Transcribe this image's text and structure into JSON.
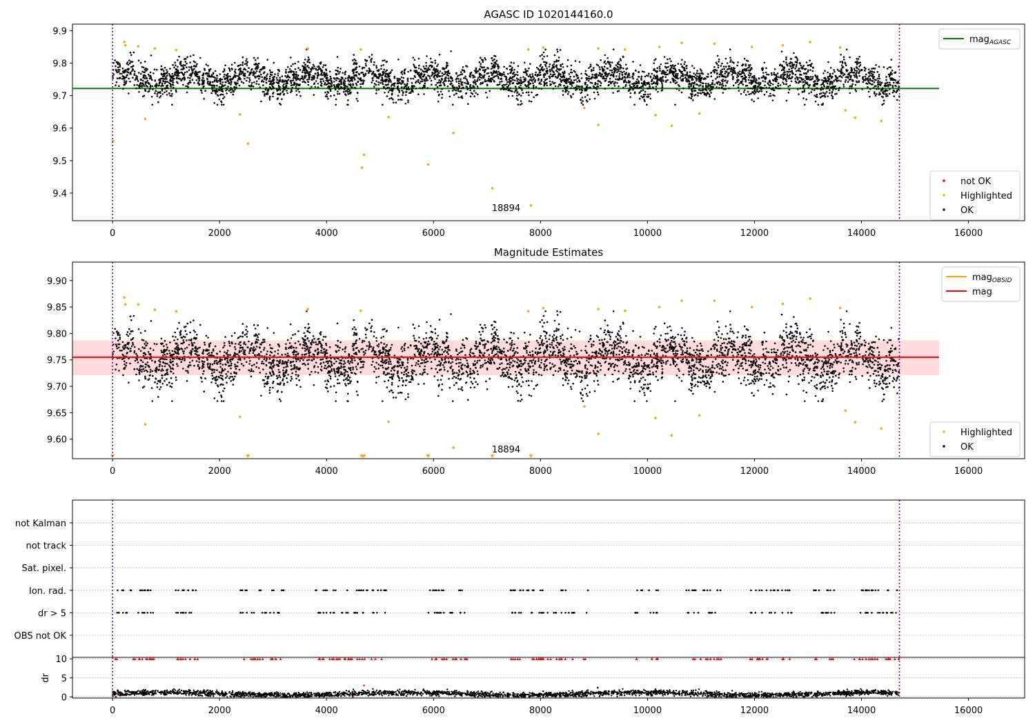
{
  "chart_data": [
    {
      "type": "scatter",
      "title": "AGASC ID 1020144160.0",
      "xlim": [
        -750,
        17050
      ],
      "ylim": [
        9.315,
        9.92
      ],
      "xticks": [
        0,
        2000,
        4000,
        6000,
        8000,
        10000,
        12000,
        14000,
        16000
      ],
      "xtick_labels": [
        "0",
        "2000",
        "4000",
        "6000",
        "8000",
        "10000",
        "12000",
        "14000",
        "16000"
      ],
      "yticks": [
        9.4,
        9.5,
        9.6,
        9.7,
        9.8,
        9.9
      ],
      "ytick_labels": [
        "9.4",
        "9.5",
        "9.6",
        "9.7",
        "9.8",
        "9.9"
      ],
      "hlines": [
        {
          "name": "mag_AGASC",
          "y": 9.722,
          "x": [
            -750,
            15450
          ],
          "color": "#008000"
        }
      ],
      "vlines": [
        {
          "x": 0,
          "color": "#800080",
          "style": "dotted"
        },
        {
          "x": 14710,
          "color": "#800080",
          "style": "dotted"
        }
      ],
      "annotations": [
        {
          "text": "18894",
          "x": 7090,
          "y": 9.345
        }
      ],
      "series": [
        {
          "name": "not OK",
          "color": "#ff0000",
          "values": []
        },
        {
          "name": "Highlighted",
          "color": "#ffa500",
          "points": [
            [
              10,
              9.56
            ],
            [
              220,
              9.865
            ],
            [
              240,
              9.855
            ],
            [
              480,
              9.852
            ],
            [
              610,
              9.628
            ],
            [
              790,
              9.845
            ],
            [
              1190,
              9.84
            ],
            [
              2380,
              9.642
            ],
            [
              2530,
              9.552
            ],
            [
              3650,
              9.845
            ],
            [
              4640,
              9.842
            ],
            [
              4660,
              9.478
            ],
            [
              4700,
              9.518
            ],
            [
              5160,
              9.634
            ],
            [
              5900,
              9.488
            ],
            [
              6370,
              9.585
            ],
            [
              7100,
              9.415
            ],
            [
              7770,
              9.842
            ],
            [
              7820,
              9.362
            ],
            [
              8050,
              9.848
            ],
            [
              8820,
              9.662
            ],
            [
              9080,
              9.61
            ],
            [
              9080,
              9.845
            ],
            [
              9580,
              9.842
            ],
            [
              10150,
              9.64
            ],
            [
              10220,
              9.85
            ],
            [
              10450,
              9.607
            ],
            [
              10640,
              9.862
            ],
            [
              10970,
              9.645
            ],
            [
              11250,
              9.86
            ],
            [
              11950,
              9.85
            ],
            [
              12530,
              9.855
            ],
            [
              13040,
              9.865
            ],
            [
              13600,
              9.848
            ],
            [
              13700,
              9.655
            ],
            [
              13880,
              9.632
            ],
            [
              14370,
              9.622
            ]
          ]
        },
        {
          "name": "OK",
          "color": "#000000",
          "generated": true,
          "count": 4200,
          "mean": 9.752,
          "sd": 0.032,
          "x_range": [
            0,
            14710
          ]
        }
      ],
      "legends": [
        {
          "placement": "upper right",
          "entries": [
            {
              "label": "mag",
              "sub": "AGASC",
              "color": "#008000",
              "kind": "line"
            }
          ]
        },
        {
          "placement": "lower right",
          "entries": [
            {
              "label": "not OK",
              "color": "#ff0000",
              "kind": "dot"
            },
            {
              "label": "Highlighted",
              "color": "#ffa500",
              "kind": "dot"
            },
            {
              "label": "OK",
              "color": "#000000",
              "kind": "dot"
            }
          ]
        }
      ]
    },
    {
      "type": "scatter",
      "title": "Magnitude Estimates",
      "xlim": [
        -750,
        17050
      ],
      "ylim": [
        9.563,
        9.935
      ],
      "xticks": [
        0,
        2000,
        4000,
        6000,
        8000,
        10000,
        12000,
        14000,
        16000
      ],
      "xtick_labels": [
        "0",
        "2000",
        "4000",
        "6000",
        "8000",
        "10000",
        "12000",
        "14000",
        "16000"
      ],
      "yticks": [
        9.6,
        9.65,
        9.7,
        9.75,
        9.8,
        9.85,
        9.9
      ],
      "ytick_labels": [
        "9.60",
        "9.65",
        "9.70",
        "9.75",
        "9.80",
        "9.85",
        "9.90"
      ],
      "hlines": [
        {
          "name": "mag",
          "y": 9.755,
          "x": [
            -750,
            15450
          ],
          "color": "#ff0000"
        }
      ],
      "bands": [
        {
          "y": [
            9.721,
            9.787
          ],
          "x": [
            -750,
            15450
          ],
          "color": "#ff8c8c",
          "opacity": 0.3
        }
      ],
      "vlines": [
        {
          "x": 0,
          "color": "#800080",
          "style": "dotted"
        },
        {
          "x": 14710,
          "color": "#800080",
          "style": "dotted"
        }
      ],
      "annotations": [
        {
          "text": "18894",
          "x": 7090,
          "y": 9.575
        }
      ],
      "series": [
        {
          "name": "Highlighted",
          "color": "#ffa500",
          "points": [
            [
              220,
              9.868
            ],
            [
              240,
              9.855
            ],
            [
              480,
              9.855
            ],
            [
              610,
              9.628
            ],
            [
              790,
              9.845
            ],
            [
              1190,
              9.842
            ],
            [
              2380,
              9.642
            ],
            [
              3650,
              9.846
            ],
            [
              4640,
              9.843
            ],
            [
              5160,
              9.633
            ],
            [
              6370,
              9.584
            ],
            [
              7770,
              9.842
            ],
            [
              8050,
              9.848
            ],
            [
              8820,
              9.662
            ],
            [
              9080,
              9.61
            ],
            [
              9080,
              9.846
            ],
            [
              9580,
              9.843
            ],
            [
              10150,
              9.64
            ],
            [
              10220,
              9.85
            ],
            [
              10450,
              9.607
            ],
            [
              10640,
              9.862
            ],
            [
              10970,
              9.645
            ],
            [
              11250,
              9.862
            ],
            [
              11950,
              9.85
            ],
            [
              12530,
              9.856
            ],
            [
              13040,
              9.866
            ],
            [
              13600,
              9.848
            ],
            [
              13700,
              9.654
            ],
            [
              13880,
              9.632
            ],
            [
              14370,
              9.62
            ]
          ]
        },
        {
          "name": "Highlighted (below axis)",
          "color": "#ffa500",
          "marker": "triangle-down",
          "x": [
            0,
            2530,
            4660,
            4700,
            5900,
            7100,
            7820
          ]
        },
        {
          "name": "OK",
          "color": "#000000",
          "generated": true,
          "count": 4200,
          "mean": 9.752,
          "sd": 0.032,
          "x_range": [
            0,
            14710
          ]
        }
      ],
      "legends": [
        {
          "placement": "upper right",
          "entries": [
            {
              "label": "mag",
              "sub": "OBSID",
              "color": "#ffa500",
              "kind": "line"
            },
            {
              "label": "mag",
              "color": "#ff0000",
              "kind": "line"
            }
          ]
        },
        {
          "placement": "lower right",
          "entries": [
            {
              "label": "Highlighted",
              "color": "#ffa500",
              "kind": "dot"
            },
            {
              "label": "OK",
              "color": "#000000",
              "kind": "dot"
            }
          ]
        }
      ]
    },
    {
      "type": "scatter",
      "title": "",
      "xlim": [
        -750,
        17050
      ],
      "categories": [
        "not Kalman",
        "not track",
        "Sat. pixel.",
        "Ion. rad.",
        "dr > 5",
        "OBS not OK"
      ],
      "flag_series": [
        {
          "name": "Ion. rad.",
          "color": "#000000",
          "x_ranges": [
            [
              0,
              780
            ],
            [
              1150,
              1620
            ],
            [
              2380,
              3200
            ],
            [
              3780,
              5150
            ],
            [
              5900,
              6650
            ],
            [
              7420,
              8650
            ],
            [
              10000,
              10250
            ],
            [
              8800,
              8900
            ],
            [
              9750,
              9950
            ],
            [
              10700,
              11400
            ],
            [
              11900,
              12700
            ],
            [
              13100,
              13500
            ],
            [
              13800,
              14710
            ]
          ]
        },
        {
          "name": "dr > 5",
          "color": "#000000",
          "x_ranges": [
            [
              0,
              780
            ],
            [
              1150,
              1620
            ],
            [
              2380,
              3200
            ],
            [
              3780,
              5150
            ],
            [
              5900,
              6650
            ],
            [
              7420,
              8650
            ],
            [
              10000,
              10250
            ],
            [
              8800,
              8900
            ],
            [
              9750,
              9950
            ],
            [
              10700,
              11400
            ],
            [
              11900,
              12700
            ],
            [
              13100,
              13500
            ],
            [
              13800,
              14710
            ]
          ]
        }
      ],
      "vlines": [
        {
          "x": 0,
          "color": "#800080",
          "style": "dotted"
        },
        {
          "x": 14710,
          "color": "#800080",
          "style": "dotted"
        }
      ]
    },
    {
      "type": "scatter",
      "title": "",
      "ylabel": "dr",
      "xlim": [
        -750,
        17050
      ],
      "ylim": [
        -0.3,
        10.4
      ],
      "xticks": [
        0,
        2000,
        4000,
        6000,
        8000,
        10000,
        12000,
        14000,
        16000
      ],
      "xtick_labels": [
        "0",
        "2000",
        "4000",
        "6000",
        "8000",
        "10000",
        "12000",
        "14000",
        "16000"
      ],
      "yticks": [
        0,
        5,
        10
      ],
      "ytick_labels": [
        "0",
        "5",
        "10"
      ],
      "vlines": [
        {
          "x": 0,
          "color": "#800080",
          "style": "dotted"
        },
        {
          "x": 14710,
          "color": "#800080",
          "style": "dotted"
        }
      ],
      "series": [
        {
          "name": "dr",
          "color": "#000000",
          "generated": true,
          "count": 2600,
          "mean": 0.8,
          "sd": 0.35,
          "x_range": [
            0,
            14710
          ],
          "outliers": [
            [
              4700,
              3.0
            ],
            [
              9070,
              2.4
            ]
          ]
        },
        {
          "name": "dr > 10",
          "color": "#ff0000",
          "marker": "triangle-up",
          "y": 10,
          "x_ranges": [
            [
              0,
              780
            ],
            [
              1150,
              1620
            ],
            [
              2380,
              3200
            ],
            [
              3780,
              5150
            ],
            [
              5900,
              6650
            ],
            [
              7420,
              8650
            ],
            [
              10000,
              10250
            ],
            [
              8800,
              8900
            ],
            [
              9750,
              9950
            ],
            [
              10700,
              11400
            ],
            [
              11900,
              12700
            ],
            [
              13100,
              13500
            ],
            [
              13800,
              14710
            ]
          ]
        }
      ]
    }
  ]
}
